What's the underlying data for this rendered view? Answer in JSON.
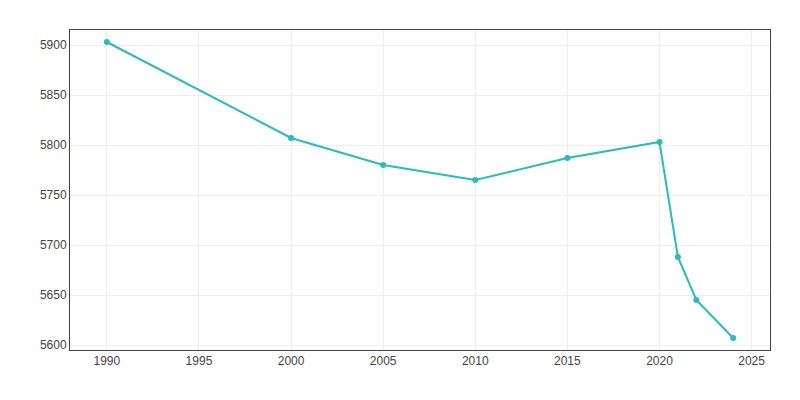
{
  "chart_data": {
    "type": "line",
    "x": [
      1990,
      2000,
      2005,
      2010,
      2015,
      2020,
      2021,
      2022,
      2024
    ],
    "values": [
      5903,
      5807,
      5780,
      5765,
      5787,
      5803,
      5688,
      5645,
      5607
    ],
    "color": "#2abcbc",
    "marker": "circle",
    "xlim": [
      1988,
      2026
    ],
    "xticks": [
      1990,
      1995,
      2000,
      2005,
      2010,
      2015,
      2020,
      2025
    ],
    "ylim": [
      5595,
      5915
    ],
    "yticks": [
      5600,
      5650,
      5700,
      5750,
      5800,
      5850,
      5900
    ],
    "grid": true
  }
}
